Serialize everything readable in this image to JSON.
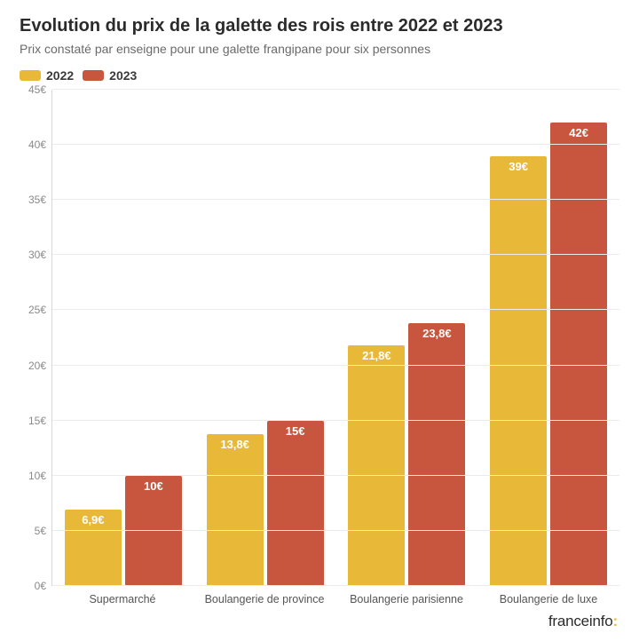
{
  "title": "Evolution du prix de la galette des rois entre 2022 et 2023",
  "subtitle": "Prix constaté par enseigne pour une galette frangipane pour six personnes",
  "legend": [
    {
      "label": "2022",
      "color": "#e8b839"
    },
    {
      "label": "2023",
      "color": "#c8553d"
    }
  ],
  "chart": {
    "type": "grouped-bar",
    "ylim": [
      0,
      45
    ],
    "ytick_step": 5,
    "yticks": [
      "0€",
      "5€",
      "10€",
      "15€",
      "20€",
      "25€",
      "30€",
      "35€",
      "40€",
      "45€"
    ],
    "gridline_color": "#ececec",
    "axis_color": "#d8d8d8",
    "background_color": "#ffffff",
    "categories": [
      "Supermarché",
      "Boulangerie de province",
      "Boulangerie parisienne",
      "Boulangerie de luxe"
    ],
    "series": [
      {
        "name": "2022",
        "color": "#e8b839",
        "values": [
          6.9,
          13.8,
          21.8,
          39
        ],
        "labels": [
          "6,9€",
          "13,8€",
          "21,8€",
          "39€"
        ]
      },
      {
        "name": "2023",
        "color": "#c8553d",
        "values": [
          10,
          15,
          23.8,
          42
        ],
        "labels": [
          "10€",
          "15€",
          "23,8€",
          "42€"
        ]
      }
    ],
    "bar_label_fontsize": 13,
    "bar_label_color": "#ffffff",
    "x_label_fontsize": 12.5,
    "y_label_fontsize": 12
  },
  "attribution": {
    "brand_light": "france",
    "brand_bold": "info",
    "colon": ":"
  }
}
